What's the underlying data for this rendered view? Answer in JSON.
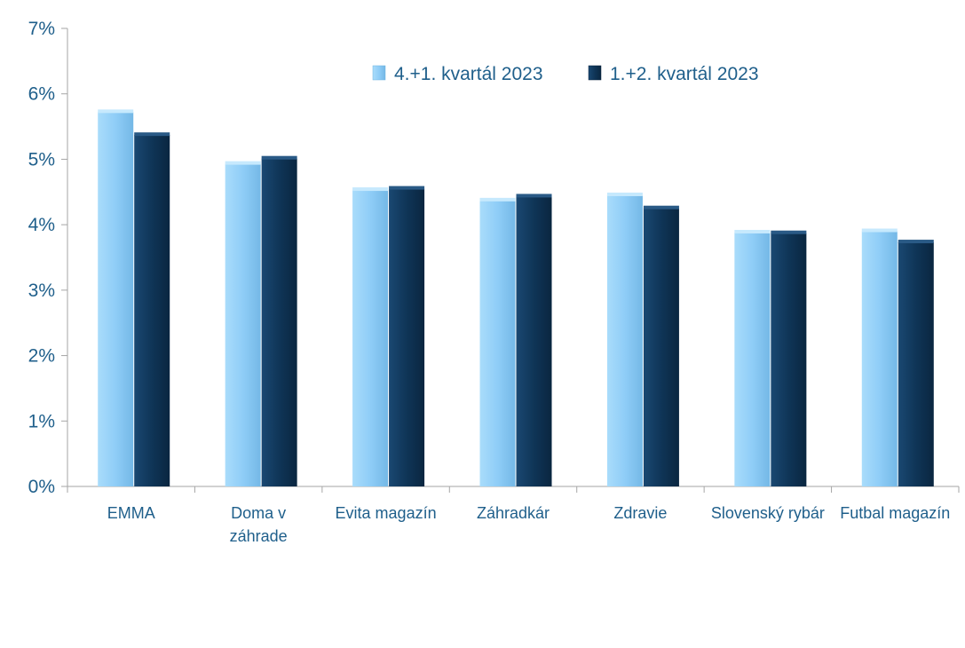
{
  "chart_data": {
    "type": "bar",
    "categories": [
      "EMMA",
      "Doma v záhrade",
      "Evita magazín",
      "Záhradkár",
      "Zdravie",
      "Slovenský rybár",
      "Futbal magazín"
    ],
    "category_lines": [
      [
        "EMMA"
      ],
      [
        "Doma v",
        "záhrade"
      ],
      [
        "Evita magazín"
      ],
      [
        "Záhradkár"
      ],
      [
        "Zdravie"
      ],
      [
        "Slovenský rybár"
      ],
      [
        "Futbal magazín"
      ]
    ],
    "series": [
      {
        "name": "4.+1. kvartál 2023",
        "values": [
          5.72,
          4.93,
          4.53,
          4.37,
          4.45,
          3.88,
          3.9
        ],
        "color": "#8fcdf7"
      },
      {
        "name": "1.+2. kvartál 2023",
        "values": [
          5.37,
          5.01,
          4.55,
          4.43,
          4.25,
          3.87,
          3.73
        ],
        "color": "#0f3557"
      }
    ],
    "ylim": [
      0,
      7
    ],
    "yticks": [
      0,
      1,
      2,
      3,
      4,
      5,
      6,
      7
    ],
    "ytick_labels": [
      "0%",
      "1%",
      "2%",
      "3%",
      "4%",
      "5%",
      "6%",
      "7%"
    ],
    "legend_position": "top-right",
    "grid": false
  }
}
